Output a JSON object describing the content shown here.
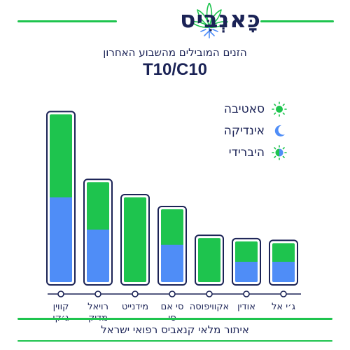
{
  "brand": {
    "name": "כָּאנְבִּיס",
    "logo_icon": "cannabis-leaf-icon"
  },
  "header": {
    "subtitle": "הזנים המובילים מהשבוע האחרון",
    "title": "T10/C10"
  },
  "legend": [
    {
      "label": "סאטיבה",
      "icon": "sun-icon",
      "color": "#1ec44e"
    },
    {
      "label": "אינדיקה",
      "icon": "moon-icon",
      "color": "#4f8df7"
    },
    {
      "label": "היברידי",
      "icon": "hybrid-sun-moon-icon",
      "color": "#1ec44e"
    }
  ],
  "footer": {
    "text": "איתור מלאי קנאביס רפואי ישראל"
  },
  "colors": {
    "sativa": "#1ec44e",
    "indica": "#4f8df7",
    "navy": "#1b2356",
    "accent_line": "#1ec44e"
  },
  "chart_data": {
    "type": "bar",
    "stacked": true,
    "categories": [
      "קווין ג׳קי",
      "רויאל מדיק",
      "מידנייט",
      "סי אם סי",
      "אקוויפוסה",
      "אודין",
      "ג׳י אל"
    ],
    "category_lines": [
      [
        "קווין",
        "ג׳קי"
      ],
      [
        "רויאל",
        "מדיק"
      ],
      [
        "מידנייט"
      ],
      [
        "סי אם",
        "סי"
      ],
      [
        "אקוויפוסה"
      ],
      [
        "אודין"
      ],
      [
        "ג׳י אל"
      ]
    ],
    "series": [
      {
        "name": "אינדיקה",
        "color": "#4f8df7",
        "values": [
          50,
          31,
          0,
          22,
          0,
          12,
          12
        ]
      },
      {
        "name": "סאטיבה",
        "color": "#1ec44e",
        "values": [
          49,
          28,
          50,
          21,
          26,
          12,
          11
        ]
      }
    ],
    "ylim": [
      0,
      100
    ],
    "grid": false,
    "legend_position": "top-right"
  }
}
